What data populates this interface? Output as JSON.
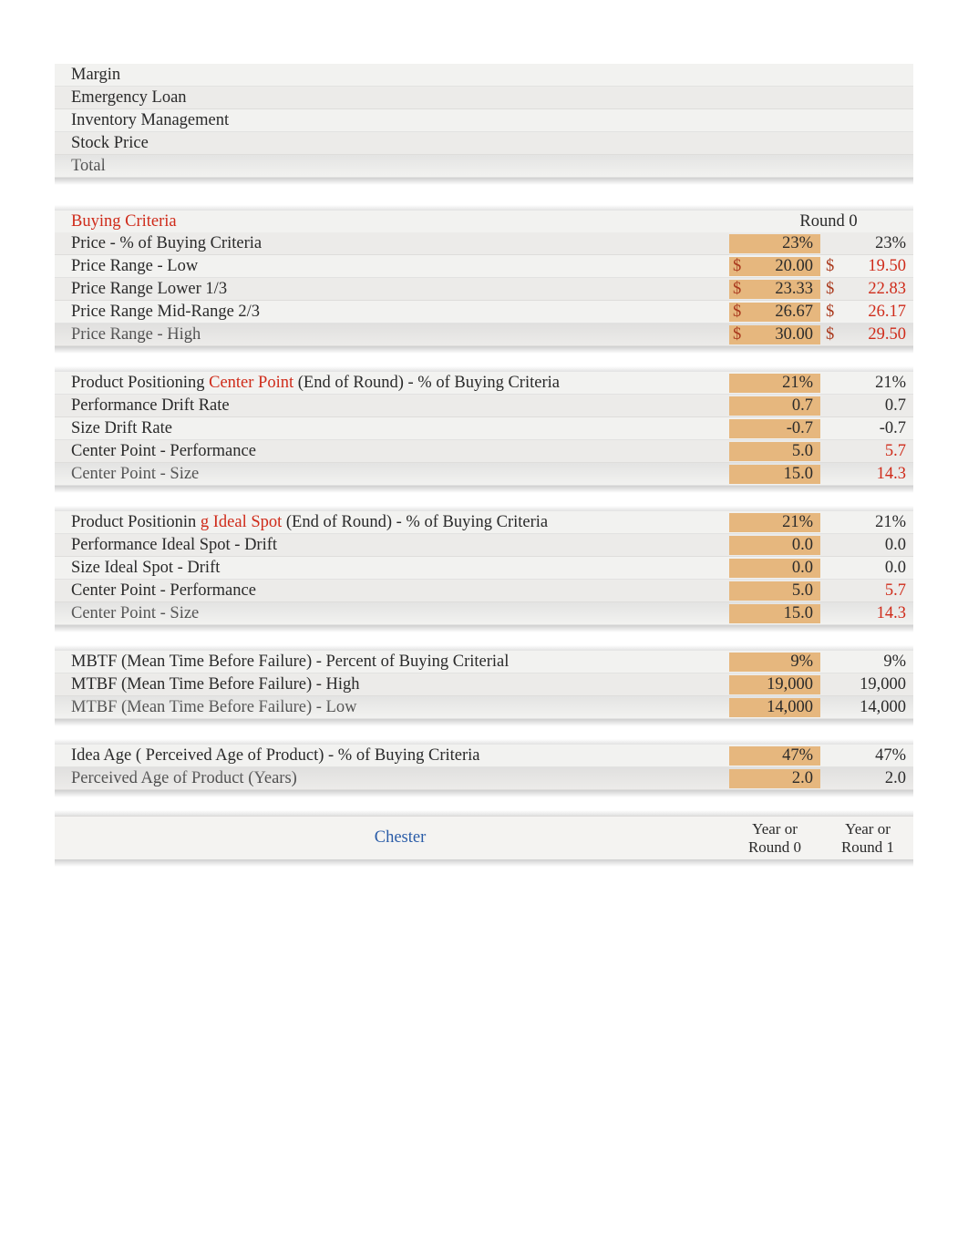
{
  "top_table": {
    "rows": [
      {
        "label": "Margin"
      },
      {
        "label": "Emergency Loan"
      },
      {
        "label": "Inventory Management"
      },
      {
        "label": "Stock Price"
      },
      {
        "label": "Total"
      }
    ]
  },
  "buying_criteria_header": {
    "title": "Buying Criteria",
    "round_label": "Round 0"
  },
  "price_section": {
    "rows": [
      {
        "label": "Price - % of Buying Criteria",
        "c0": "23%",
        "c1": "23%",
        "dollar": false,
        "c1red": false
      },
      {
        "label": "Price Range - Low",
        "c0": "20.00",
        "c1": "19.50",
        "dollar": true,
        "c1red": true
      },
      {
        "label": "Price Range Lower 1/3",
        "c0": "23.33",
        "c1": "22.83",
        "dollar": true,
        "c1red": true
      },
      {
        "label": "Price Range Mid-Range 2/3",
        "c0": "26.67",
        "c1": "26.17",
        "dollar": true,
        "c1red": true
      },
      {
        "label": "Price Range - High",
        "c0": "30.00",
        "c1": "29.50",
        "dollar": true,
        "c1red": true
      }
    ]
  },
  "center_point_section": {
    "header": {
      "pre": "Product Positioning  ",
      "red": "Center Point",
      "post": " (End of Round) - % of Buying Criteria",
      "c0": "21%",
      "c1": "21%"
    },
    "rows": [
      {
        "label": "Performance Drift Rate",
        "c0": "0.7",
        "c1": "0.7",
        "c1red": false
      },
      {
        "label": "Size Drift Rate",
        "c0": "-0.7",
        "c1": "-0.7",
        "c1red": false
      },
      {
        "label": "Center Point - Performance",
        "c0": "5.0",
        "c1": "5.7",
        "c1red": true
      },
      {
        "label": "Center Point - Size",
        "c0": "15.0",
        "c1": "14.3",
        "c1red": true
      }
    ]
  },
  "ideal_spot_section": {
    "header": {
      "pre": "Product Positionin ",
      "red": "g Ideal Spot",
      "post": " (End of Round) - % of Buying Criteria",
      "c0": "21%",
      "c1": "21%"
    },
    "rows": [
      {
        "label": "Performance Ideal Spot - Drift",
        "c0": "0.0",
        "c1": "0.0",
        "c1red": false
      },
      {
        "label": "Size Ideal Spot - Drift",
        "c0": "0.0",
        "c1": "0.0",
        "c1red": false
      },
      {
        "label": "Center Point - Performance",
        "c0": "5.0",
        "c1": "5.7",
        "c1red": true
      },
      {
        "label": "Center Point - Size",
        "c0": "15.0",
        "c1": "14.3",
        "c1red": true
      }
    ]
  },
  "mtbf_section": {
    "rows": [
      {
        "label": "MBTF (Mean Time Before Failure) - Percent of Buying Criterial",
        "c0": "9%",
        "c1": "9%"
      },
      {
        "label": "MTBF (Mean Time Before Failure) - High",
        "c0": "19,000",
        "c1": "19,000"
      },
      {
        "label": "MTBF (Mean Time Before Failure) - Low",
        "c0": "14,000",
        "c1": "14,000"
      }
    ]
  },
  "age_section": {
    "rows": [
      {
        "label": "Idea Age ( Perceived Age of Product) - % of Buying Criteria",
        "c0": "47%",
        "c1": "47%"
      },
      {
        "label": "Perceived Age of Product (Years)",
        "c0": "2.0",
        "c1": "2.0"
      }
    ]
  },
  "footer": {
    "name": "Chester",
    "c0": "Year or Round 0",
    "c1": "Year or Round 1"
  },
  "colors": {
    "highlight": "#e6b77e",
    "red": "#cf2b1a",
    "blue": "#2a5ca8",
    "rust": "#aa3a1e",
    "rowbg": "#f2f2f0"
  }
}
